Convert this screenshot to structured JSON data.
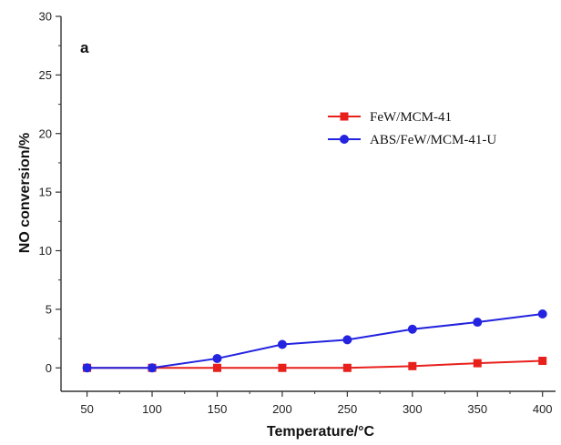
{
  "chart_data": {
    "type": "line",
    "panel_label": "a",
    "xlabel": "Temperature/°C",
    "ylabel": "NO conversion/%",
    "x": [
      50,
      100,
      150,
      200,
      250,
      300,
      350,
      400
    ],
    "xticks": [
      "50",
      "100",
      "150",
      "200",
      "250",
      "300",
      "350",
      "400"
    ],
    "yticks": [
      "0",
      "5",
      "10",
      "15",
      "20",
      "25",
      "30"
    ],
    "xlim": [
      30,
      410
    ],
    "ylim": [
      -2,
      30
    ],
    "grid": false,
    "legend_position": "top-right",
    "series": [
      {
        "name": "FeW/MCM-41",
        "color": "#e8201c",
        "marker": "square",
        "values": [
          0,
          0,
          0,
          0,
          0,
          0.15,
          0.4,
          0.6
        ]
      },
      {
        "name": "ABS/FeW/MCM-41-U",
        "color": "#2323e0",
        "marker": "circle",
        "values": [
          0,
          0,
          0.8,
          2.0,
          2.4,
          3.3,
          3.9,
          4.6
        ]
      }
    ]
  }
}
